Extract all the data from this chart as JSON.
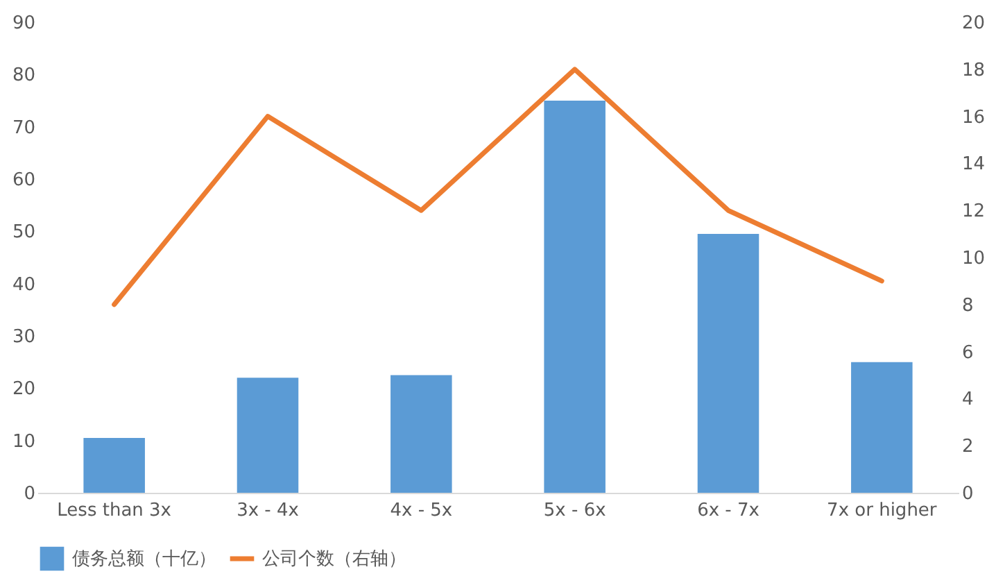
{
  "chart_data": {
    "type": "bar",
    "categories": [
      "Less than 3x",
      "3x - 4x",
      "4x - 5x",
      "5x - 6x",
      "6x - 7x",
      "7x or higher"
    ],
    "series": [
      {
        "name": "债务总额（十亿）",
        "color": "#5b9bd5",
        "values": [
          10.5,
          22,
          22.5,
          75,
          49.5,
          25
        ]
      },
      {
        "name": "公司个数（右轴）",
        "type": "line",
        "axis": "y2",
        "color": "#ed7d31",
        "values": [
          8,
          16,
          12,
          18,
          12,
          9
        ]
      }
    ],
    "ylim": [
      0,
      90
    ],
    "yticks": [
      0,
      10,
      20,
      30,
      40,
      50,
      60,
      70,
      80,
      90
    ],
    "y2lim": [
      0,
      20
    ],
    "y2ticks": [
      0,
      2,
      4,
      6,
      8,
      10,
      12,
      14,
      16,
      18,
      20
    ],
    "grid": false,
    "legend": "bottom",
    "marker": "none",
    "line_style": "solid"
  }
}
